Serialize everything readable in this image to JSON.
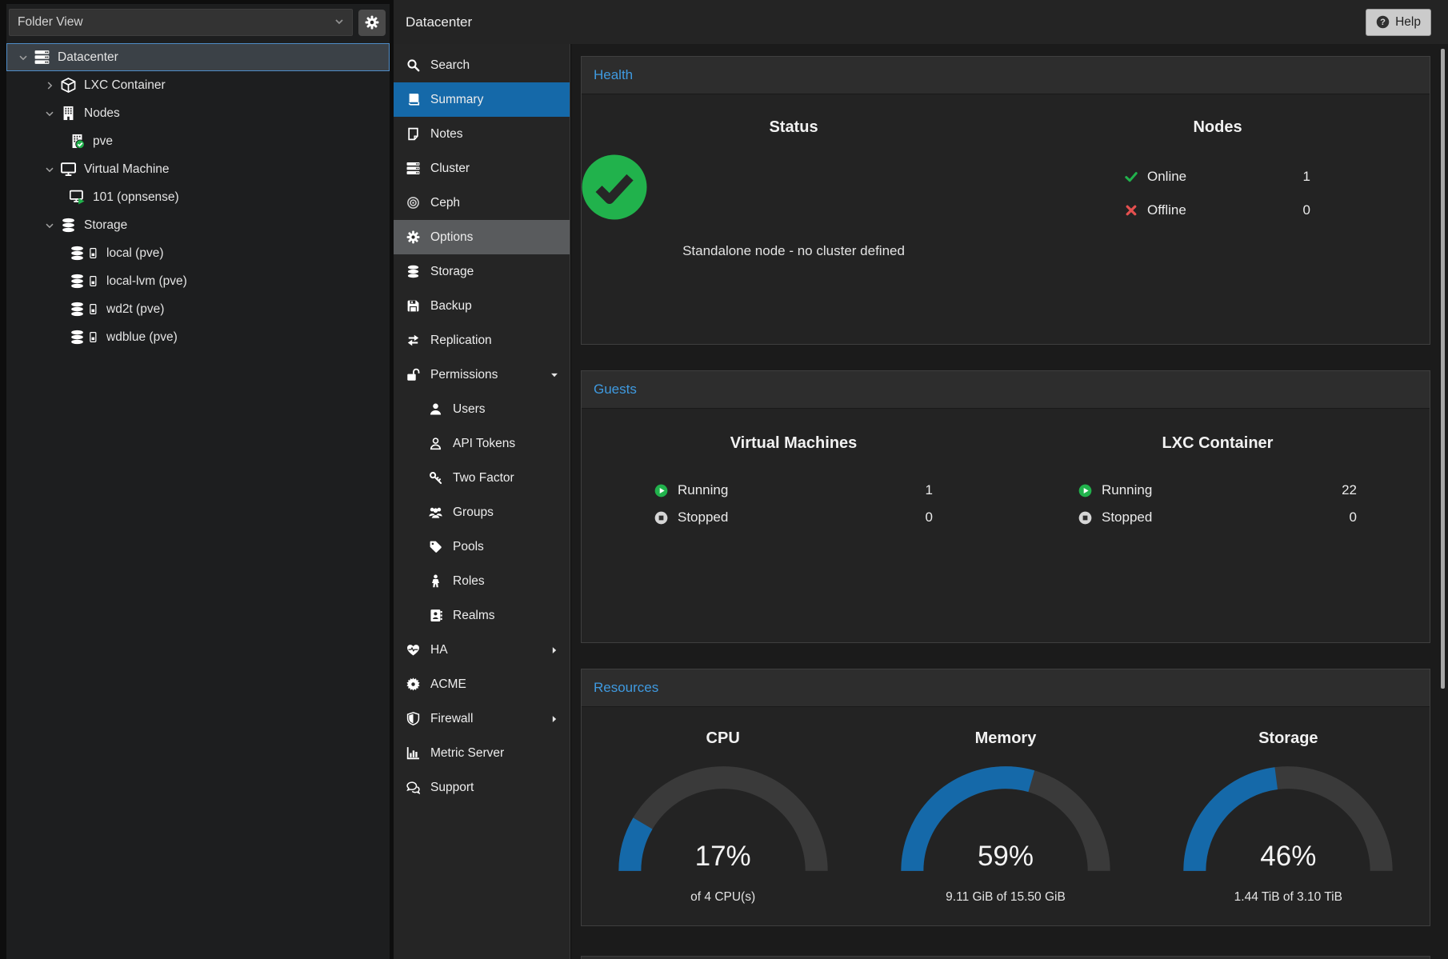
{
  "app": {
    "title": "Datacenter",
    "help_label": "Help"
  },
  "colors": {
    "accent_blue": "#1569a9",
    "header_blue": "#3f9ae0",
    "green": "#21b24c",
    "red": "#e5504f",
    "gauge_track": "#3a3a3a",
    "scrollbar": "#a6a6a6"
  },
  "sidebar": {
    "view_selector": "Folder View",
    "tree": [
      {
        "label": "Datacenter",
        "icons": [
          "datacenter"
        ],
        "level": 0,
        "expander": "expanded",
        "selected": true
      },
      {
        "label": "LXC Container",
        "icons": [
          "cube"
        ],
        "level": 1,
        "expander": "collapsed"
      },
      {
        "label": "Nodes",
        "icons": [
          "building"
        ],
        "level": 1,
        "expander": "expanded"
      },
      {
        "label": "pve",
        "icons": [
          "building-check"
        ],
        "level": 2
      },
      {
        "label": "Virtual Machine",
        "icons": [
          "monitor"
        ],
        "level": 1,
        "expander": "expanded"
      },
      {
        "label": "101 (opnsense)",
        "icons": [
          "monitor-running"
        ],
        "level": 2
      },
      {
        "label": "Storage",
        "icons": [
          "database"
        ],
        "level": 1,
        "expander": "expanded"
      },
      {
        "label": "local (pve)",
        "icons": [
          "database",
          "storage-meter"
        ],
        "level": 2
      },
      {
        "label": "local-lvm (pve)",
        "icons": [
          "database",
          "storage-meter"
        ],
        "level": 2
      },
      {
        "label": "wd2t (pve)",
        "icons": [
          "database",
          "storage-meter"
        ],
        "level": 2
      },
      {
        "label": "wdblue (pve)",
        "icons": [
          "database",
          "storage-meter"
        ],
        "level": 2
      }
    ]
  },
  "menu": {
    "items": [
      {
        "label": "Search",
        "icon": "search"
      },
      {
        "label": "Summary",
        "icon": "summary-book",
        "state": "selected"
      },
      {
        "label": "Notes",
        "icon": "note"
      },
      {
        "label": "Cluster",
        "icon": "cluster"
      },
      {
        "label": "Ceph",
        "icon": "ceph"
      },
      {
        "label": "Options",
        "icon": "gear",
        "state": "hover"
      },
      {
        "label": "Storage",
        "icon": "database"
      },
      {
        "label": "Backup",
        "icon": "floppy"
      },
      {
        "label": "Replication",
        "icon": "replication"
      },
      {
        "label": "Permissions",
        "icon": "unlock",
        "expand": "down"
      },
      {
        "label": "Users",
        "icon": "user",
        "sub": true
      },
      {
        "label": "API Tokens",
        "icon": "user-outline",
        "sub": true
      },
      {
        "label": "Two Factor",
        "icon": "key",
        "sub": true
      },
      {
        "label": "Groups",
        "icon": "users",
        "sub": true
      },
      {
        "label": "Pools",
        "icon": "tag",
        "sub": true
      },
      {
        "label": "Roles",
        "icon": "person",
        "sub": true
      },
      {
        "label": "Realms",
        "icon": "address-book",
        "sub": true
      },
      {
        "label": "HA",
        "icon": "heartbeat",
        "expand": "right"
      },
      {
        "label": "ACME",
        "icon": "acme"
      },
      {
        "label": "Firewall",
        "icon": "shield",
        "expand": "right"
      },
      {
        "label": "Metric Server",
        "icon": "chart"
      },
      {
        "label": "Support",
        "icon": "support"
      }
    ]
  },
  "health": {
    "title": "Health",
    "status": {
      "heading": "Status",
      "icon": "health-check",
      "message": "Standalone node - no cluster defined"
    },
    "nodes": {
      "heading": "Nodes",
      "rows": [
        {
          "label": "Online",
          "value": "1",
          "icon": "check"
        },
        {
          "label": "Offline",
          "value": "0",
          "icon": "cross"
        }
      ]
    }
  },
  "guests": {
    "title": "Guests",
    "columns": [
      {
        "heading": "Virtual Machines",
        "rows": [
          {
            "label": "Running",
            "value": "1",
            "icon": "play-circle"
          },
          {
            "label": "Stopped",
            "value": "0",
            "icon": "stop-circle"
          }
        ]
      },
      {
        "heading": "LXC Container",
        "rows": [
          {
            "label": "Running",
            "value": "22",
            "icon": "play-circle"
          },
          {
            "label": "Stopped",
            "value": "0",
            "icon": "stop-circle"
          }
        ]
      }
    ]
  },
  "resources": {
    "title": "Resources",
    "gauges": [
      {
        "heading": "CPU",
        "percent": 17,
        "percent_label": "17%",
        "detail": "of 4 CPU(s)"
      },
      {
        "heading": "Memory",
        "percent": 59,
        "percent_label": "59%",
        "detail": "9.11 GiB of 15.50 GiB"
      },
      {
        "heading": "Storage",
        "percent": 46,
        "percent_label": "46%",
        "detail": "1.44 TiB of 3.10 TiB"
      }
    ]
  }
}
